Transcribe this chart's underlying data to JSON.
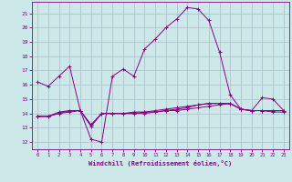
{
  "xlabel": "Windchill (Refroidissement éolien,°C)",
  "background_color": "#cce8e8",
  "line_color": "#880088",
  "grid_color": "#aabbcc",
  "xlim": [
    -0.5,
    23.5
  ],
  "ylim": [
    11.5,
    21.8
  ],
  "yticks": [
    12,
    13,
    14,
    15,
    16,
    17,
    18,
    19,
    20,
    21
  ],
  "xticks": [
    0,
    1,
    2,
    3,
    4,
    5,
    6,
    7,
    8,
    9,
    10,
    11,
    12,
    13,
    14,
    15,
    16,
    17,
    18,
    19,
    20,
    21,
    22,
    23
  ],
  "line1": [
    16.2,
    15.9,
    16.6,
    17.3,
    14.2,
    12.2,
    12.0,
    16.6,
    17.1,
    16.6,
    18.5,
    19.2,
    20.0,
    20.6,
    21.4,
    21.3,
    20.5,
    18.3,
    15.3,
    14.3,
    14.2,
    15.1,
    15.0,
    14.2
  ],
  "line2": [
    13.8,
    13.8,
    14.1,
    14.2,
    14.2,
    13.2,
    14.0,
    14.0,
    14.0,
    14.1,
    14.1,
    14.1,
    14.2,
    14.2,
    14.3,
    14.4,
    14.5,
    14.6,
    14.7,
    14.3,
    14.2,
    14.2,
    14.2,
    14.2
  ],
  "line3": [
    13.8,
    13.8,
    14.0,
    14.2,
    14.2,
    13.2,
    14.0,
    14.0,
    14.0,
    14.0,
    14.1,
    14.2,
    14.3,
    14.4,
    14.5,
    14.6,
    14.7,
    14.7,
    14.7,
    14.3,
    14.2,
    14.2,
    14.2,
    14.2
  ],
  "line4": [
    13.8,
    13.8,
    14.0,
    14.1,
    14.2,
    13.1,
    14.0,
    14.0,
    14.0,
    14.0,
    14.0,
    14.1,
    14.2,
    14.3,
    14.4,
    14.6,
    14.7,
    14.7,
    14.7,
    14.3,
    14.2,
    14.2,
    14.1,
    14.1
  ]
}
